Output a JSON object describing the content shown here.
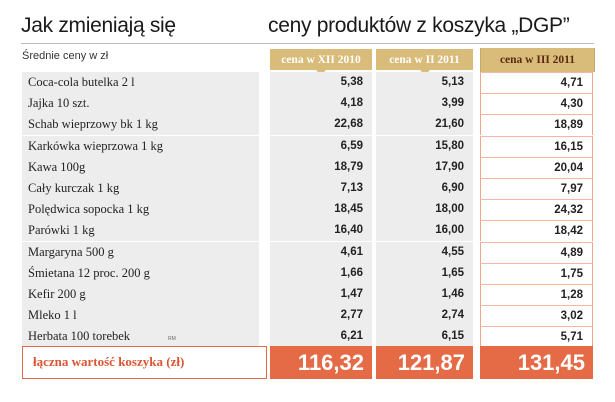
{
  "title": {
    "left": "Jak zmieniają się",
    "right": "ceny produktów z koszyka „DGP”"
  },
  "subtitle": "Średnie ceny w zł",
  "columns": [
    "cena w XII 2010",
    "cena w II 2011",
    "cena w III 2011"
  ],
  "rows": [
    {
      "product": "Coca-cola butelka 2 l",
      "values": [
        "5,38",
        "5,13",
        "4,71"
      ]
    },
    {
      "product": "Jajka 10 szt.",
      "values": [
        "4,18",
        "3,99",
        "4,30"
      ]
    },
    {
      "product": "Schab wieprzowy bk 1 kg",
      "values": [
        "22,68",
        "21,60",
        "18,89"
      ]
    },
    {
      "product": "Karkówka wieprzowa 1 kg",
      "values": [
        "6,59",
        "15,80",
        "16,15"
      ]
    },
    {
      "product": "Kawa 100g",
      "values": [
        "18,79",
        "17,90",
        "20,04"
      ]
    },
    {
      "product": "Cały kurczak 1 kg",
      "values": [
        "7,13",
        "6,90",
        "7,97"
      ]
    },
    {
      "product": "Polędwica sopocka 1 kg",
      "values": [
        "18,45",
        "18,00",
        "24,32"
      ]
    },
    {
      "product": "Parówki 1 kg",
      "values": [
        "16,40",
        "16,00",
        "18,42"
      ]
    },
    {
      "product": "Margaryna  500 g",
      "values": [
        "4,61",
        "4,55",
        "4,89"
      ]
    },
    {
      "product": "Śmietana 12 proc. 200 g",
      "values": [
        "1,66",
        "1,65",
        "1,75"
      ]
    },
    {
      "product": "Kefir 200 g",
      "values": [
        "1,47",
        "1,46",
        "1,28"
      ]
    },
    {
      "product": "Mleko 1 l",
      "values": [
        "2,77",
        "2,74",
        "3,02"
      ]
    },
    {
      "product": "Herbata  100 torebek",
      "values": [
        "6,21",
        "6,15",
        "5,71"
      ]
    }
  ],
  "rm_mark": "RM",
  "total": {
    "label": "łączna wartość koszyka (zł)",
    "values": [
      "116,32",
      "121,87",
      "131,45"
    ]
  },
  "colors": {
    "header_gold": "#d9bb7a",
    "row_gray": "#ededed",
    "accent_orange": "#e56a46"
  }
}
